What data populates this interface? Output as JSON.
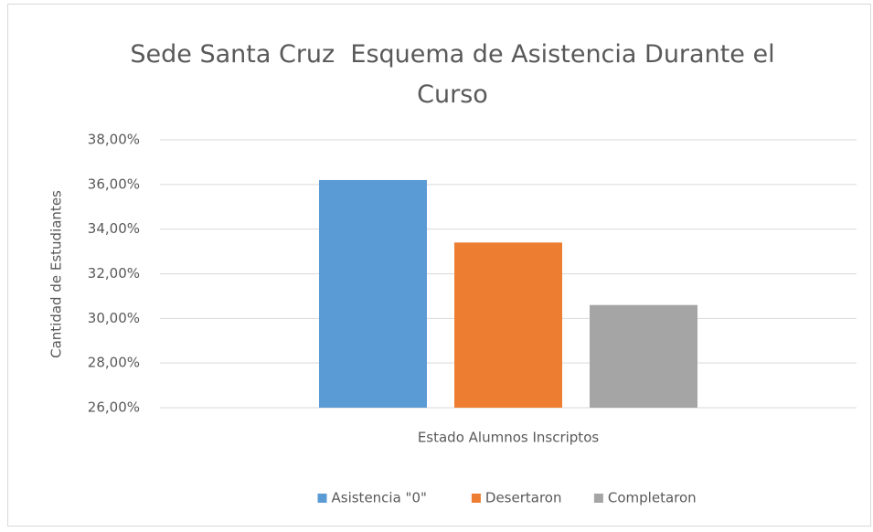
{
  "chart_data": {
    "type": "bar",
    "title": "Sede Santa Cruz  Esquema de Asistencia Durante el Curso",
    "y_label": "Cantidad de Estudiantes",
    "categories": [
      "Estado Alumnos Inscriptos"
    ],
    "series": [
      {
        "name": "Asistencia \"0\"",
        "color": "#5b9bd5",
        "values": [
          36.2
        ]
      },
      {
        "name": "Desertaron",
        "color": "#ed7d31",
        "values": [
          33.4
        ]
      },
      {
        "name": "Completaron",
        "color": "#a5a5a5",
        "values": [
          30.6
        ]
      }
    ],
    "ylim": [
      26,
      38
    ],
    "yticks": [
      {
        "value": 26,
        "label": "26,00%"
      },
      {
        "value": 28,
        "label": "28,00%"
      },
      {
        "value": 30,
        "label": "30,00%"
      },
      {
        "value": 32,
        "label": "32,00%"
      },
      {
        "value": 34,
        "label": "34,00%"
      },
      {
        "value": 36,
        "label": "36,00%"
      },
      {
        "value": 38,
        "label": "38,00%"
      }
    ],
    "grid": true,
    "legend": "bottom"
  }
}
